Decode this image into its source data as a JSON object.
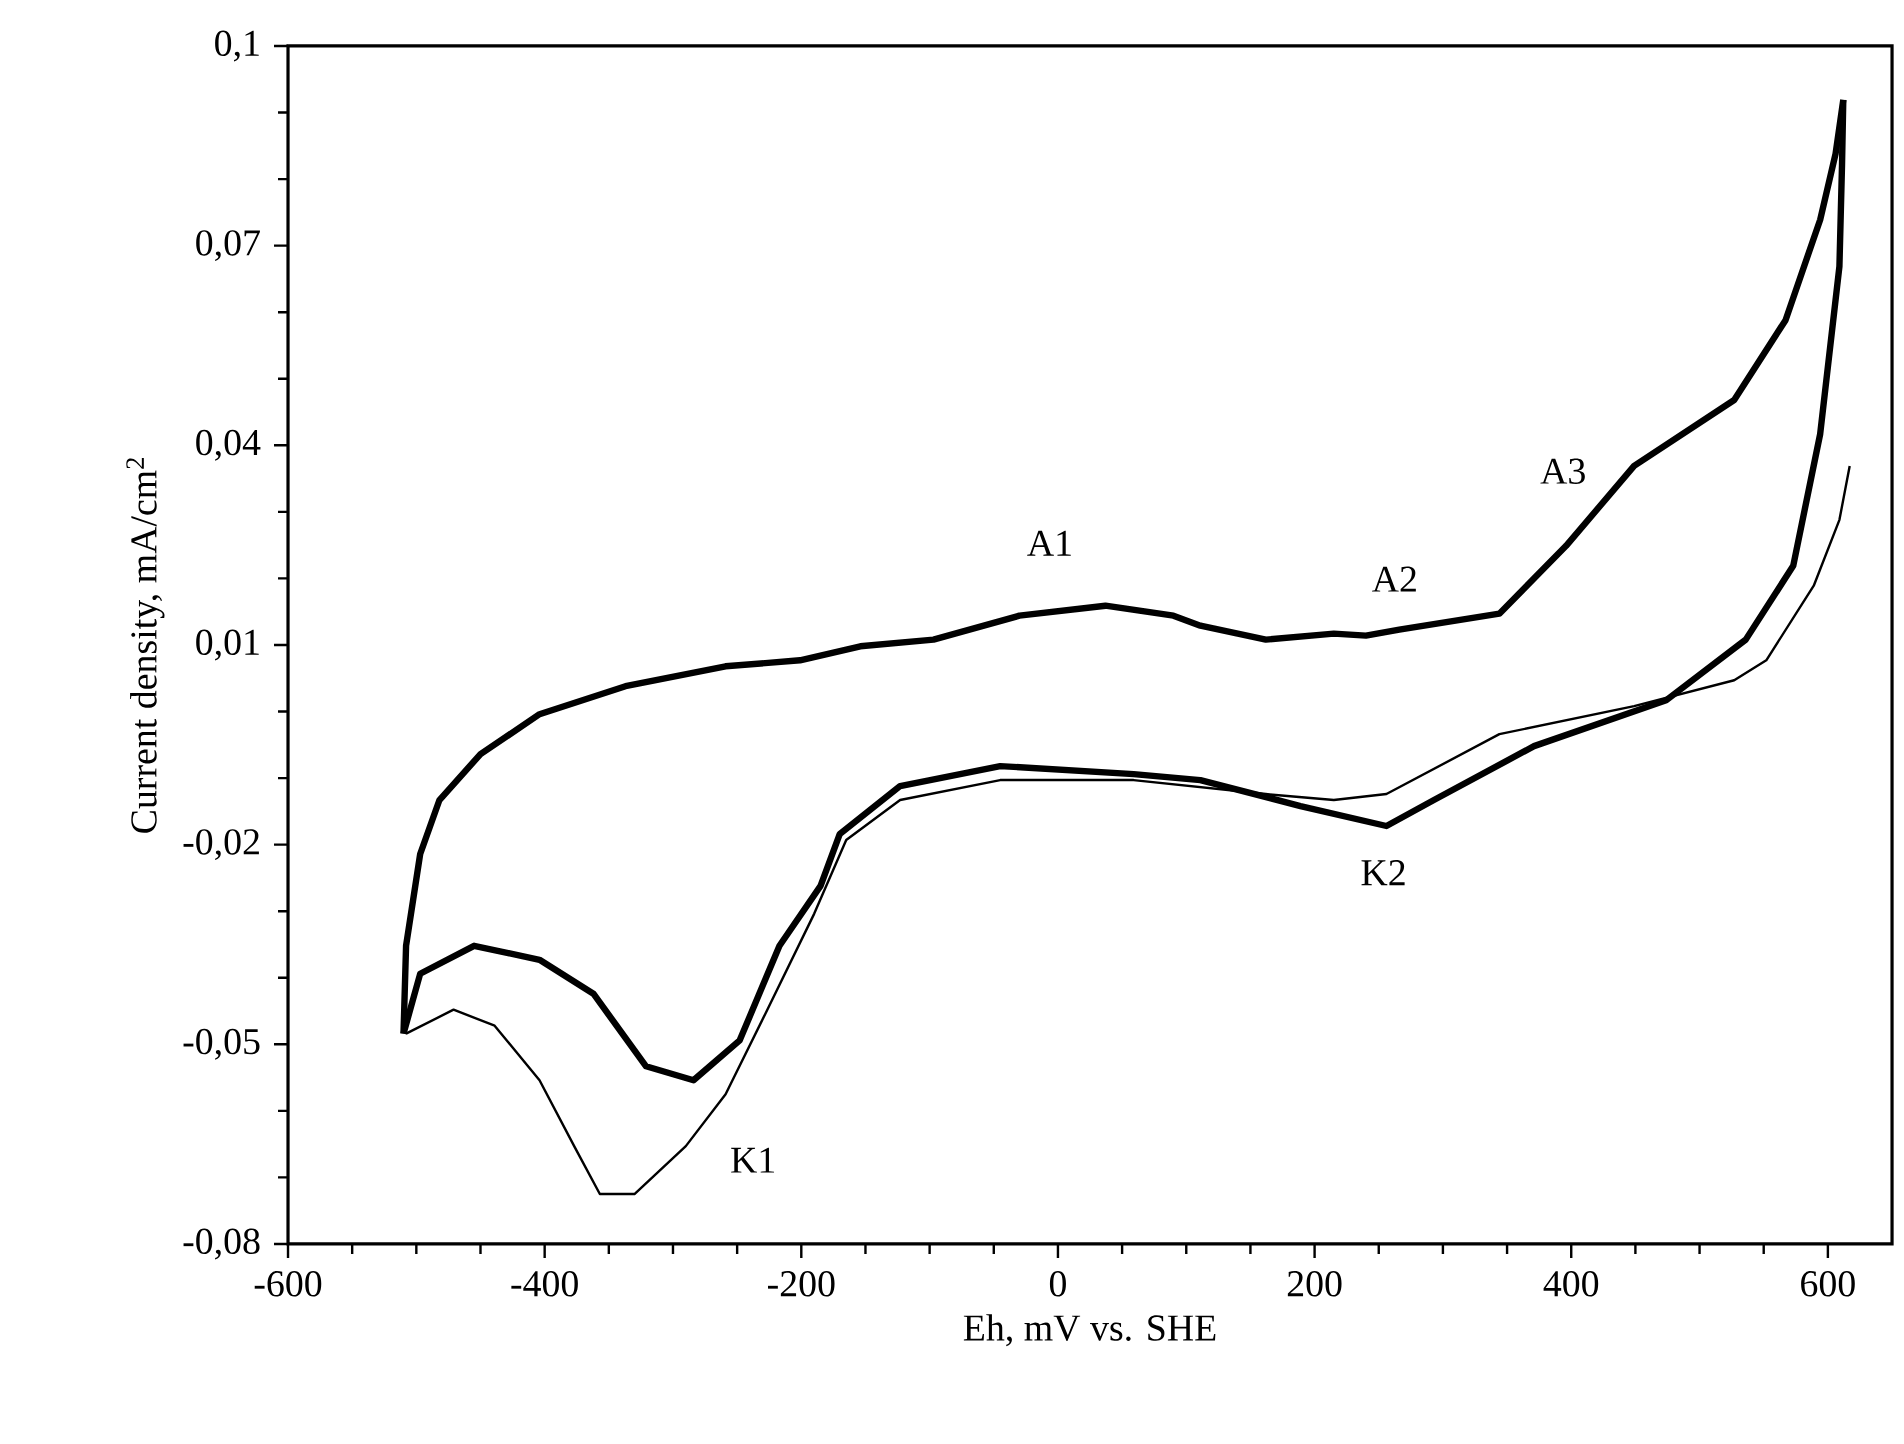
{
  "chart_data": {
    "type": "line",
    "xlabel": "Eh, mV vs. SHE",
    "ylabel": "Current density, mA/cm$^{2}$",
    "marker": "none",
    "line_style": "solid",
    "xlim": [
      -600,
      650
    ],
    "ylim": [
      -0.08,
      0.1
    ],
    "xticks": [
      -600,
      -400,
      -200,
      0,
      200,
      400,
      600
    ],
    "yticks": [
      {
        "value": 0.1,
        "label": "0,1"
      },
      {
        "value": 0.07,
        "label": "0,07"
      },
      {
        "value": 0.04,
        "label": "0,04"
      },
      {
        "value": 0.01,
        "label": "0,01"
      },
      {
        "value": -0.02,
        "label": "-0,02"
      },
      {
        "value": -0.05,
        "label": "-0,05"
      },
      {
        "value": -0.08,
        "label": "-0,08"
      }
    ],
    "series": [
      {
        "color": "#000000",
        "x": [
          -510,
          -508,
          -497,
          -482,
          -450,
          -404,
          -337,
          -259,
          -201,
          -154,
          -97,
          -30,
          37,
          90,
          111,
          162,
          215,
          240,
          266,
          344,
          396,
          449,
          527,
          567,
          594,
          606,
          612
        ],
        "values": [
          -0.0484,
          -0.0352,
          -0.0214,
          -0.0133,
          -0.0064,
          -0.0004,
          0.0038,
          0.0068,
          0.0077,
          0.0098,
          0.0108,
          0.0144,
          0.0159,
          0.0144,
          0.0129,
          0.0108,
          0.0117,
          0.0114,
          0.0123,
          0.0147,
          0.0249,
          0.0369,
          0.0468,
          0.0588,
          0.0739,
          0.0838,
          0.0919
        ]
      },
      {
        "color": "#000000",
        "x": [
          612,
          611,
          609,
          594,
          573,
          536,
          474,
          371,
          293,
          256,
          189,
          111,
          59,
          -45,
          -123,
          -170,
          -185,
          -217,
          -248,
          -284,
          -321,
          -362,
          -404,
          -455,
          -497,
          -510
        ],
        "values": [
          0.0919,
          0.082,
          0.0669,
          0.0417,
          0.0219,
          0.0108,
          0.0017,
          -0.0052,
          -0.0133,
          -0.0172,
          -0.0142,
          -0.0103,
          -0.0094,
          -0.0082,
          -0.0112,
          -0.0184,
          -0.0262,
          -0.0352,
          -0.0494,
          -0.0554,
          -0.0533,
          -0.0424,
          -0.0373,
          -0.0352,
          -0.0394,
          -0.0484
        ]
      },
      {
        "color": "#000000",
        "x": [
          -508,
          -471,
          -439,
          -404,
          -377,
          -357,
          -330,
          -290,
          -259,
          -228,
          -190,
          -165,
          -123,
          -45,
          59,
          162,
          215,
          256,
          344,
          449,
          527,
          552,
          589,
          609,
          617
        ],
        "values": [
          -0.0484,
          -0.0448,
          -0.0472,
          -0.0554,
          -0.0653,
          -0.0725,
          -0.0725,
          -0.0653,
          -0.0575,
          -0.0454,
          -0.0304,
          -0.0193,
          -0.0133,
          -0.0103,
          -0.0103,
          -0.0124,
          -0.0133,
          -0.0124,
          -0.0034,
          0.0008,
          0.0047,
          0.0077,
          0.0189,
          0.0288,
          0.0369
        ]
      }
    ],
    "annotations": [
      "A1",
      "A2",
      "A3",
      "K1",
      "K2"
    ]
  }
}
